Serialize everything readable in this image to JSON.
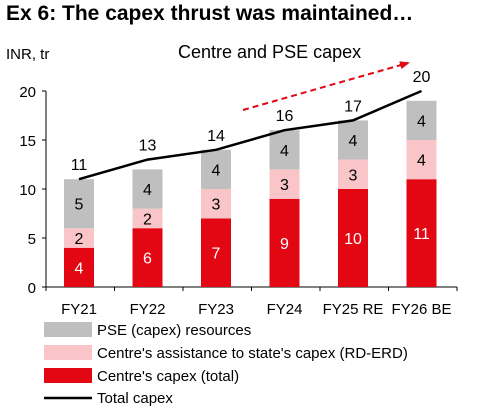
{
  "chart_data": {
    "type": "bar",
    "title": "Ex 6: The capex thrust was maintained…",
    "ylabel": "INR, tr",
    "ylim": [
      0,
      20
    ],
    "yticks": [
      0,
      5,
      10,
      15,
      20
    ],
    "categories": [
      "FY21",
      "FY22",
      "FY23",
      "FY24",
      "FY25 RE",
      "FY26 BE"
    ],
    "series": [
      {
        "name": "Centre's capex (total)",
        "values": [
          4,
          6,
          7,
          9,
          10,
          11
        ],
        "color": "#e30613",
        "label_color": "#ffffff"
      },
      {
        "name": "Centre's assistance to state's capex (RD-ERD)",
        "values": [
          2,
          2,
          3,
          3,
          3,
          4
        ],
        "color": "#f9c5c8",
        "label_color": "#000000"
      },
      {
        "name": "PSE (capex) resources",
        "values": [
          5,
          4,
          4,
          4,
          4,
          4
        ],
        "color": "#bfbfbf",
        "label_color": "#000000"
      }
    ],
    "line": {
      "name": "Total capex",
      "values": [
        11,
        13,
        14,
        16,
        17,
        20
      ],
      "color": "#000000"
    },
    "annotation": {
      "text": "Centre and PSE capex",
      "arrow_color": "#e30613"
    },
    "legend_order": [
      "PSE (capex) resources",
      "Centre's assistance to state's capex (RD-ERD)",
      "Centre's capex (total)",
      "Total capex"
    ],
    "legend_position": "bottom",
    "grid": false
  }
}
